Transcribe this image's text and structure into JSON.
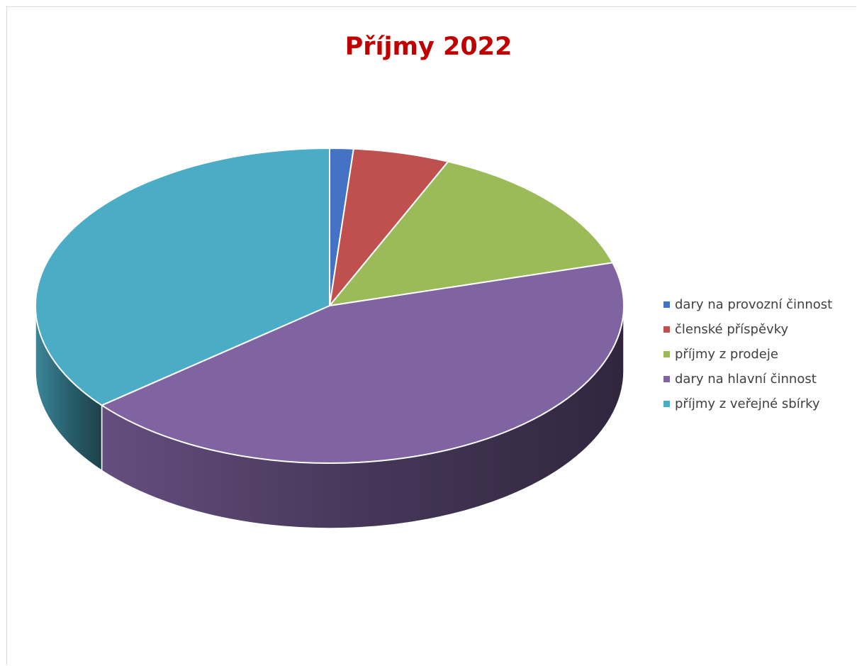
{
  "chart_data": {
    "type": "pie",
    "style": "3d",
    "title": "Příjmy 2022",
    "title_color": "#c00000",
    "legend_position": "right",
    "series": [
      {
        "name": "dary na provozní činnost",
        "value": 1.3,
        "color": "#4472c4"
      },
      {
        "name": "členské příspěvky",
        "value": 5.3,
        "color": "#c0504d"
      },
      {
        "name": "příjmy z prodeje",
        "value": 14.0,
        "color": "#9bbb59"
      },
      {
        "name": "dary na hlavní činnost",
        "value": 43.5,
        "color": "#8064a2"
      },
      {
        "name": "příjmy z veřejné sbírky",
        "value": 35.9,
        "color": "#4bacc6"
      }
    ]
  }
}
